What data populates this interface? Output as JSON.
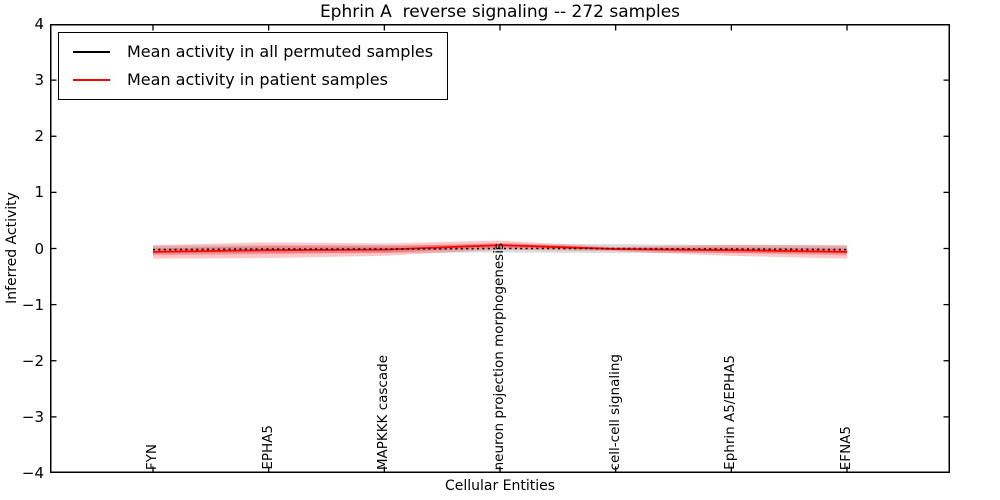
{
  "figure": {
    "title": "Ephrin A  reverse signaling -- 272 samples",
    "xlabel": "Cellular Entities",
    "ylabel": "Inferred Activity"
  },
  "legend": {
    "items": [
      {
        "label": "Mean activity in all permuted samples",
        "color": "#000000"
      },
      {
        "label": "Mean activity in patient samples",
        "color": "#ff0000"
      }
    ]
  },
  "chart_data": {
    "type": "line",
    "title": "Ephrin A  reverse signaling -- 272 samples",
    "xlabel": "Cellular Entities",
    "ylabel": "Inferred Activity",
    "ylim": [
      -4,
      4
    ],
    "yticks": [
      4,
      3,
      2,
      1,
      0,
      -1,
      -2,
      -3,
      -4
    ],
    "ytick_labels": [
      "4",
      "3",
      "2",
      "1",
      "0",
      "−1",
      "−2",
      "−3",
      "−4"
    ],
    "categories": [
      "FYN",
      "EPHA5",
      "MAPKKK cascade",
      "neuron projection morphogenesis",
      "cell-cell signaling",
      "Ephrin A5/EPHA5",
      "EFNA5"
    ],
    "grid": false,
    "legend_position": "upper left",
    "series": [
      {
        "name": "Mean activity in all permuted samples",
        "color": "#000000",
        "line_style": "dotted",
        "values": [
          -0.02,
          -0.01,
          -0.01,
          0.0,
          0.0,
          -0.01,
          -0.02
        ],
        "band_halfwidth": [
          0.07,
          0.07,
          0.07,
          0.07,
          0.08,
          0.07,
          0.07
        ],
        "band_color": "rgba(128,128,128,0.28)"
      },
      {
        "name": "Mean activity in patient samples",
        "color": "#ff0000",
        "line_style": "solid",
        "values": [
          -0.06,
          -0.03,
          -0.02,
          0.06,
          -0.01,
          -0.03,
          -0.06
        ],
        "band_halfwidth": [
          0.12,
          0.14,
          0.11,
          0.08,
          0.04,
          0.1,
          0.12
        ],
        "band_inner_halfwidth": [
          0.06,
          0.07,
          0.055,
          0.04,
          0.02,
          0.05,
          0.06
        ],
        "band_color": "rgba(255,0,0,0.22)",
        "band_inner_color": "rgba(235,30,40,0.28)"
      }
    ]
  }
}
